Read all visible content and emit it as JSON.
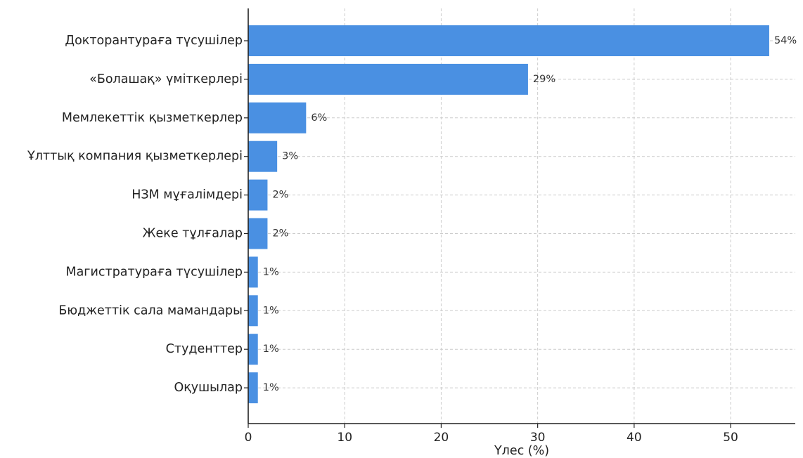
{
  "chart_data": {
    "type": "bar",
    "orientation": "horizontal",
    "title": "",
    "xlabel": "Үлес (%)",
    "ylabel": "",
    "xlim": [
      0,
      56.7
    ],
    "xticks": [
      0,
      10,
      20,
      30,
      40,
      50
    ],
    "grid": true,
    "bar_color": "#4a90e2",
    "categories": [
      "Докторантураға түсушілер",
      "«Болашақ» үміткерлері",
      "Мемлекеттік қызметкерлер",
      "Ұлттық компания қызметкерлері",
      "НЗМ мұғалімдері",
      "Жеке тұлғалар",
      "Магистратураға түсушілер",
      "Бюджеттік сала мамандары",
      "Студенттер",
      "Оқушылар"
    ],
    "values": [
      54,
      29,
      6,
      3,
      2,
      2,
      1,
      1,
      1,
      1
    ],
    "value_labels": [
      "54%",
      "29%",
      "6%",
      "3%",
      "2%",
      "2%",
      "1%",
      "1%",
      "1%",
      "1%"
    ]
  }
}
